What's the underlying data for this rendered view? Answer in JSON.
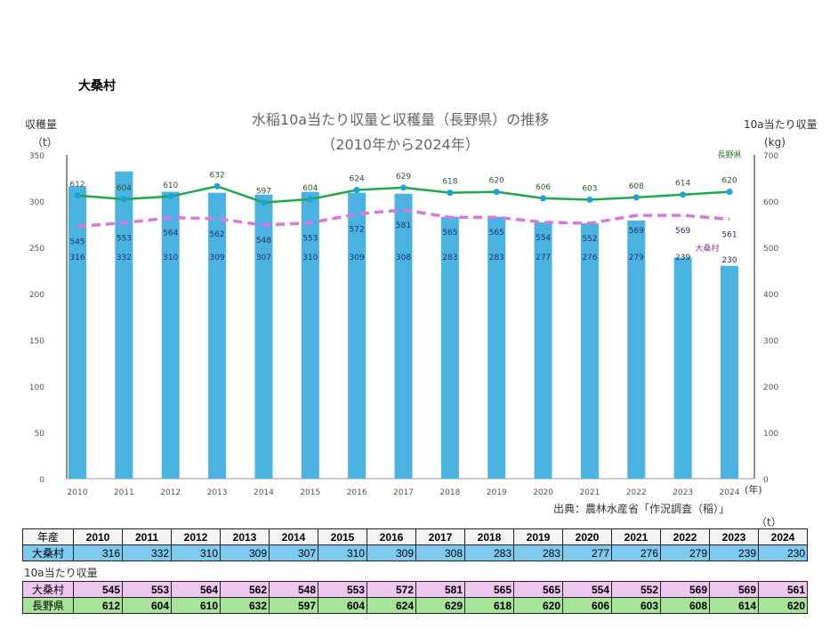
{
  "page_title": "大桑村",
  "chart_data": {
    "type": "bar+line",
    "title": "水稲10a当たり収量と収穫量（長野県）の推移",
    "subtitle": "（2010年から2024年）",
    "categories": [
      "2010",
      "2011",
      "2012",
      "2013",
      "2014",
      "2015",
      "2016",
      "2017",
      "2018",
      "2019",
      "2020",
      "2021",
      "2022",
      "2023",
      "2024"
    ],
    "x_unit": "(年)",
    "y_left": {
      "label": "収穫量",
      "unit": "（t）",
      "range": [
        0,
        350
      ],
      "ticks": [
        0,
        50,
        100,
        150,
        200,
        250,
        300,
        350
      ]
    },
    "y_right": {
      "label": "10a当たり収量",
      "unit": "(kg)",
      "range": [
        0,
        700
      ],
      "ticks": [
        0,
        100,
        200,
        300,
        400,
        500,
        600,
        700
      ]
    },
    "series": [
      {
        "name": "大桑村",
        "kind": "bar",
        "axis": "left",
        "color": "#4ab3e2",
        "values": [
          316,
          332,
          310,
          309,
          307,
          310,
          309,
          308,
          283,
          283,
          277,
          276,
          279,
          239,
          230
        ]
      },
      {
        "name": "長野県",
        "kind": "line",
        "axis": "right",
        "color": "#1fa84a",
        "marker_color": "#1ba3d6",
        "values": [
          612,
          604,
          610,
          632,
          597,
          604,
          624,
          629,
          618,
          620,
          606,
          603,
          608,
          614,
          620
        ]
      },
      {
        "name": "大桑村",
        "kind": "dashed-line",
        "axis": "right",
        "color": "#d978d9",
        "values": [
          545,
          553,
          564,
          562,
          548,
          553,
          572,
          581,
          565,
          565,
          554,
          552,
          569,
          569,
          561
        ]
      }
    ],
    "legend_labels": {
      "nagano": "長野県",
      "village": "大桑村"
    },
    "grid": false
  },
  "source": "出典：農林水産省「作況調査（稲）」",
  "table_unit": "（t）",
  "harvest_table": {
    "header_label": "年産",
    "row_label": "大桑村"
  },
  "yield_table": {
    "caption": "10a当たり収量",
    "rows": [
      {
        "label": "大桑村",
        "key": "village"
      },
      {
        "label": "長野県",
        "key": "nagano"
      }
    ]
  }
}
